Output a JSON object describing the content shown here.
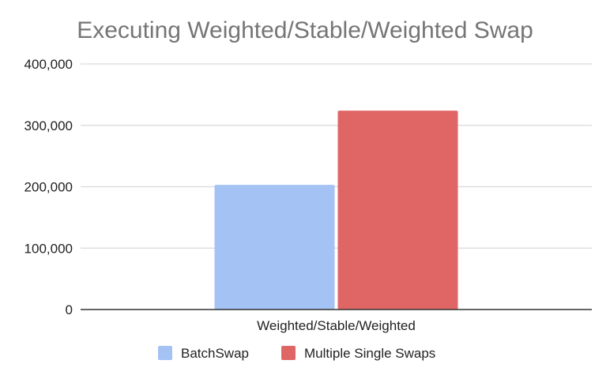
{
  "chart_data": {
    "type": "bar",
    "title": "Executing Weighted/Stable/Weighted Swap",
    "xlabel": "",
    "ylabel": "",
    "categories": [
      "Weighted/Stable/Weighted"
    ],
    "series": [
      {
        "name": "BatchSwap",
        "values": [
          203000
        ],
        "color": "#a4c2f4"
      },
      {
        "name": "Multiple Single Swaps",
        "values": [
          324000
        ],
        "color": "#e06666"
      }
    ],
    "ylim": [
      0,
      400000
    ],
    "yticks": [
      {
        "value": 0,
        "label": "0"
      },
      {
        "value": 100000,
        "label": "100,000"
      },
      {
        "value": 200000,
        "label": "200,000"
      },
      {
        "value": 300000,
        "label": "300,000"
      },
      {
        "value": 400000,
        "label": "400,000"
      }
    ],
    "grid": true,
    "legend_position": "bottom"
  }
}
